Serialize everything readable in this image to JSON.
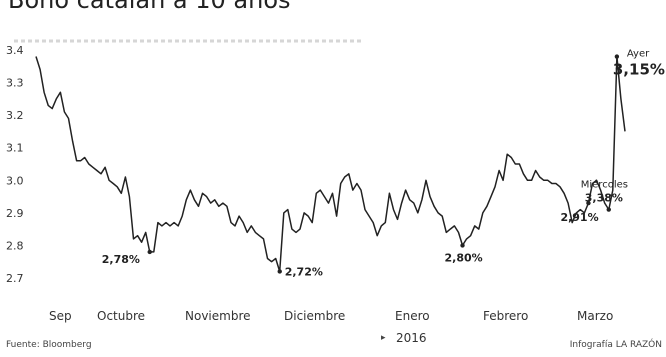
{
  "title": "Bono catalán a 10 años",
  "footer": {
    "source": "Fuente: Bloomberg",
    "credit": "Infografía LA RAZÓN"
  },
  "chart_data": {
    "type": "line",
    "title": "Bono catalán a 10 años",
    "xlabel": "",
    "ylabel": "",
    "ylim": [
      2.7,
      3.4
    ],
    "yticks": [
      2.7,
      2.8,
      2.9,
      3.0,
      3.1,
      3.2,
      3.3,
      3.4
    ],
    "ytick_labels": [
      "2.7",
      "2.8",
      "2.9",
      "3.0",
      "3.1",
      "3.2",
      "3.3",
      "3.4"
    ],
    "months": [
      "Sep",
      "Octubre",
      "Noviembre",
      "Diciembre",
      "Enero",
      "Febrero",
      "Marzo"
    ],
    "year_label": "2016",
    "grid": false,
    "color": "#222222",
    "series": [
      {
        "values": [
          3.38,
          3.34,
          3.27,
          3.23,
          3.22,
          3.25,
          3.27,
          3.21,
          3.19,
          3.12,
          3.06,
          3.06,
          3.07,
          3.05,
          3.04,
          3.03,
          3.02,
          3.04,
          3.0,
          2.99,
          2.98,
          2.96,
          3.01,
          2.95,
          2.82,
          2.83,
          2.81,
          2.84,
          2.78,
          2.78,
          2.87,
          2.86,
          2.87,
          2.86,
          2.87,
          2.86,
          2.89,
          2.94,
          2.97,
          2.94,
          2.92,
          2.96,
          2.95,
          2.93,
          2.94,
          2.92,
          2.93,
          2.92,
          2.87,
          2.86,
          2.89,
          2.87,
          2.84,
          2.86,
          2.84,
          2.83,
          2.82,
          2.76,
          2.75,
          2.76,
          2.72,
          2.9,
          2.91,
          2.85,
          2.84,
          2.85,
          2.9,
          2.89,
          2.87,
          2.96,
          2.97,
          2.95,
          2.93,
          2.96,
          2.89,
          2.99,
          3.01,
          3.02,
          2.97,
          2.99,
          2.97,
          2.91,
          2.89,
          2.87,
          2.83,
          2.86,
          2.87,
          2.96,
          2.91,
          2.88,
          2.93,
          2.97,
          2.94,
          2.93,
          2.9,
          2.94,
          3.0,
          2.95,
          2.92,
          2.9,
          2.89,
          2.84,
          2.85,
          2.86,
          2.84,
          2.8,
          2.82,
          2.83,
          2.86,
          2.85,
          2.9,
          2.92,
          2.95,
          2.98,
          3.03,
          3.0,
          3.08,
          3.07,
          3.05,
          3.05,
          3.02,
          3.0,
          3.0,
          3.03,
          3.01,
          3.0,
          3.0,
          2.99,
          2.99,
          2.98,
          2.96,
          2.93,
          2.87,
          2.9,
          2.91,
          2.9,
          2.93,
          2.99,
          3.0,
          2.97,
          2.93,
          2.91,
          2.97,
          3.38,
          3.25,
          3.15
        ]
      }
    ],
    "annotations": [
      {
        "label": "3,38%",
        "sublabel": "Miércoles",
        "value": 3.38
      },
      {
        "label": "3,15%",
        "sublabel": "Ayer",
        "value": 3.15
      },
      {
        "label": "2,78%",
        "value": 2.78
      },
      {
        "label": "2,72%",
        "value": 2.72
      },
      {
        "label": "2,80%",
        "value": 2.8
      },
      {
        "label": "2,91%",
        "value": 2.91
      }
    ]
  }
}
